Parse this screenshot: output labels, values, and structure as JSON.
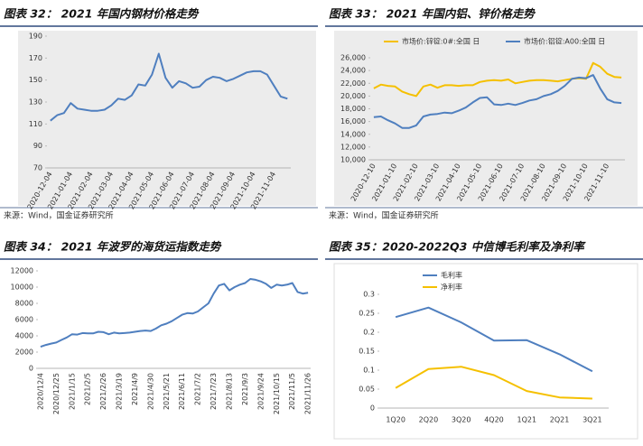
{
  "chart_data": [
    {
      "type": "line",
      "title": "图表 32： 2021 年国内钢材价格走势",
      "source": "来源：Wind，国金证券研究所",
      "categories": [
        "2020-12-04",
        null,
        null,
        "2021-01-04",
        null,
        null,
        "2021-02-04",
        null,
        null,
        "2021-03-04",
        null,
        null,
        "2021-04-04",
        null,
        null,
        "2021-05-04",
        null,
        null,
        "2021-06-04",
        null,
        null,
        "2021-07-04",
        null,
        null,
        "2021-08-04",
        null,
        null,
        "2021-09-04",
        null,
        null,
        "2021-10-04",
        null,
        null,
        "2021-11-04",
        null,
        null
      ],
      "series": [
        {
          "name": null,
          "color": "#4f7fbf",
          "values": [
            113,
            118,
            120,
            129,
            124,
            123,
            122,
            122,
            123,
            127,
            133,
            132,
            136,
            146,
            145,
            155,
            174,
            152,
            143,
            149,
            147,
            143,
            144,
            150,
            153,
            152,
            149,
            151,
            154,
            157,
            158,
            158,
            155,
            145,
            135,
            133
          ]
        }
      ],
      "ylim": [
        70,
        190
      ],
      "yticks": [
        70,
        90,
        110,
        130,
        150,
        170,
        190
      ]
    },
    {
      "type": "line",
      "title": "图表 33： 2021 年国内铝、锌价格走势",
      "source": "来源：Wind，国金证券研究所",
      "categories": [
        "2020-12-10",
        null,
        null,
        "2021-01-10",
        null,
        null,
        "2021-02-10",
        null,
        null,
        "2021-03-10",
        null,
        null,
        "2021-04-10",
        null,
        null,
        "2021-05-10",
        null,
        null,
        "2021-06-10",
        null,
        null,
        "2021-07-10",
        null,
        null,
        "2021-08-10",
        null,
        null,
        "2021-09-10",
        null,
        null,
        "2021-10-10",
        null,
        null,
        "2021-11-10",
        null,
        null
      ],
      "series": [
        {
          "name": "市场价:锌锭:0#:全国 日",
          "color": "#f5c000",
          "values": [
            21200,
            21800,
            21600,
            21500,
            20700,
            20300,
            20000,
            21500,
            21800,
            21300,
            21700,
            21700,
            21600,
            21700,
            21700,
            22200,
            22400,
            22500,
            22400,
            22600,
            22000,
            22200,
            22400,
            22500,
            22500,
            22400,
            22300,
            22500,
            22700,
            22800,
            22700,
            25200,
            24600,
            23500,
            23000,
            22900
          ]
        },
        {
          "name": "市场价:铝锭:A00:全国 日",
          "color": "#4f7fbf",
          "values": [
            16700,
            16800,
            16200,
            15700,
            15000,
            15000,
            15400,
            16800,
            17100,
            17200,
            17400,
            17300,
            17700,
            18200,
            19000,
            19700,
            19800,
            18700,
            18600,
            18800,
            18600,
            18900,
            19300,
            19500,
            20000,
            20300,
            20800,
            21600,
            22700,
            22900,
            22800,
            23300,
            21200,
            19500,
            19000,
            18900
          ]
        }
      ],
      "ylim": [
        10000,
        26000
      ],
      "yticks": [
        {
          "value": 10000,
          "label": "10,000"
        },
        {
          "value": 12000,
          "label": "12,000"
        },
        {
          "value": 14000,
          "label": "14,000"
        },
        {
          "value": 16000,
          "label": "16,000"
        },
        {
          "value": 18000,
          "label": "18,000"
        },
        {
          "value": 20000,
          "label": "20,000"
        },
        {
          "value": 22000,
          "label": "22,000"
        },
        {
          "value": 24000,
          "label": "24,000"
        },
        {
          "value": 26000,
          "label": "26,000"
        }
      ]
    },
    {
      "type": "line",
      "title": "图表 34： 2021 年波罗的海货运指数走势",
      "categories": [
        "2020/12/4",
        null,
        null,
        "2020/12/25",
        null,
        null,
        "2021/1/15",
        null,
        null,
        "2021/2/5",
        null,
        null,
        "2021/2/26",
        null,
        null,
        "2021/3/19",
        null,
        null,
        "2021/4/9",
        null,
        null,
        "2021/4/30",
        null,
        null,
        "2021/5/21",
        null,
        null,
        "2021/6/11",
        null,
        null,
        "2021/7/2",
        null,
        null,
        "2021/7/23",
        null,
        null,
        "2021/8/13",
        null,
        null,
        "2021/9/3",
        null,
        null,
        "2021/9/24",
        null,
        null,
        "2021/10/15",
        null,
        null,
        "2021/11/5",
        null,
        null,
        "2021/11/26"
      ],
      "series": [
        {
          "name": null,
          "color": "#4f7fbf",
          "values": [
            2660,
            2880,
            3050,
            3180,
            3500,
            3800,
            4200,
            4150,
            4350,
            4300,
            4300,
            4500,
            4450,
            4200,
            4400,
            4300,
            4350,
            4400,
            4500,
            4600,
            4650,
            4600,
            4900,
            5300,
            5500,
            5800,
            6200,
            6600,
            6800,
            6750,
            7000,
            7500,
            8000,
            9200,
            10200,
            10400,
            9600,
            10000,
            10300,
            10500,
            11000,
            10900,
            10700,
            10400,
            9900,
            10300,
            10200,
            10300,
            10500,
            9400,
            9200,
            9300
          ]
        }
      ],
      "ylim": [
        0,
        12000
      ],
      "yticks": [
        0,
        2000,
        4000,
        6000,
        8000,
        10000,
        12000
      ]
    },
    {
      "type": "line",
      "title": "图表 35：2020-2022Q3 中信博毛利率及净利率",
      "categories": [
        "1Q20",
        "2Q20",
        "3Q20",
        "4Q20",
        "1Q21",
        "2Q21",
        "3Q21"
      ],
      "series": [
        {
          "name": "毛利率",
          "color": "#4f7fbf",
          "values": [
            0.24,
            0.265,
            0.226,
            0.178,
            0.179,
            0.142,
            0.097
          ]
        },
        {
          "name": "净利率",
          "color": "#f5c000",
          "values": [
            0.053,
            0.103,
            0.109,
            0.087,
            0.045,
            0.028,
            0.025
          ]
        }
      ],
      "ylim": [
        0,
        0.3
      ],
      "yticks": [
        0,
        0.05,
        0.1,
        0.15,
        0.2,
        0.25,
        0.3
      ]
    }
  ]
}
